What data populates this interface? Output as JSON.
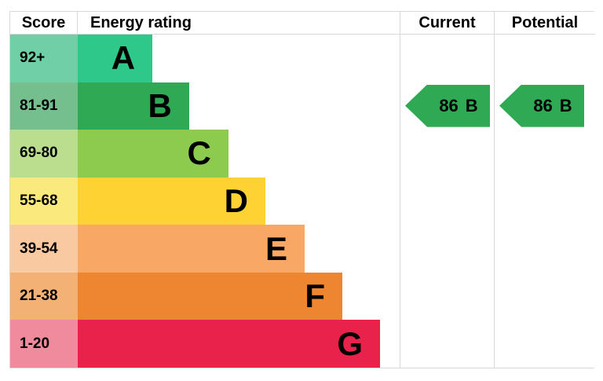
{
  "colors": {
    "border": "#d8d8d8",
    "arrow_green": "#2fa953",
    "text": "#000000"
  },
  "header": {
    "score": "Score",
    "energy_rating": "Energy rating",
    "current": "Current",
    "potential": "Potential"
  },
  "bands": [
    {
      "letter": "A",
      "score": "92+",
      "color": "#2dc88a",
      "tint": "#70cfa7",
      "width_pct": 23.2
    },
    {
      "letter": "B",
      "score": "81-91",
      "color": "#2fa953",
      "tint": "#74bf8d",
      "width_pct": 34.6
    },
    {
      "letter": "C",
      "score": "69-80",
      "color": "#8ccb4e",
      "tint": "#bade8e",
      "width_pct": 46.8
    },
    {
      "letter": "D",
      "score": "55-68",
      "color": "#fdd232",
      "tint": "#fae97d",
      "width_pct": 58.3
    },
    {
      "letter": "E",
      "score": "39-54",
      "color": "#f8a765",
      "tint": "#f9caa1",
      "width_pct": 70.5
    },
    {
      "letter": "F",
      "score": "21-38",
      "color": "#ee8530",
      "tint": "#f3b175",
      "width_pct": 82.2
    },
    {
      "letter": "G",
      "score": "1-20",
      "color": "#e8224b",
      "tint": "#ef8b9d",
      "width_pct": 93.9
    }
  ],
  "current": {
    "value": "86",
    "letter": "B",
    "band_index": 1
  },
  "potential": {
    "value": "86",
    "letter": "B",
    "band_index": 1
  },
  "chart_data": {
    "type": "bar",
    "title": "Energy rating",
    "categories": [
      "A",
      "B",
      "C",
      "D",
      "E",
      "F",
      "G"
    ],
    "score_ranges": [
      "92+",
      "81-91",
      "69-80",
      "55-68",
      "39-54",
      "21-38",
      "1-20"
    ],
    "values": [
      23.2,
      34.6,
      46.8,
      58.3,
      70.5,
      82.2,
      93.9
    ],
    "legend_position": "none",
    "grid": false,
    "annotations": [
      {
        "name": "current",
        "value": 86,
        "rating": "B"
      },
      {
        "name": "potential",
        "value": 86,
        "rating": "B"
      }
    ]
  }
}
